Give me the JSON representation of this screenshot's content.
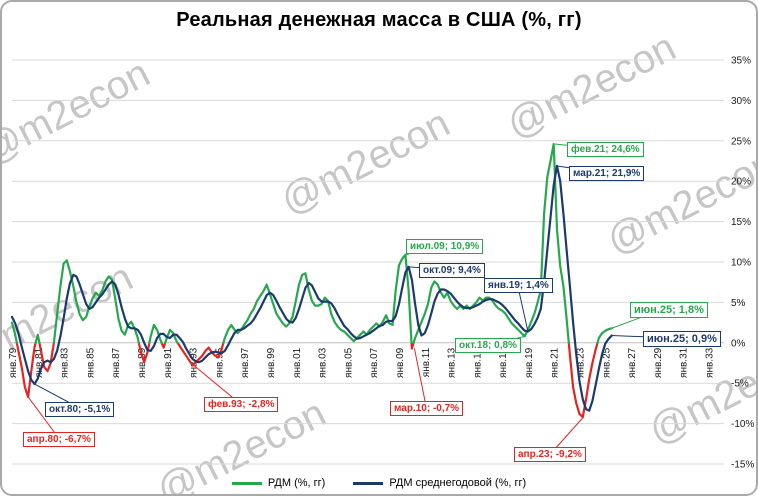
{
  "title": "Реальная денежная масса в США (%, гг)",
  "watermark": "@m2econ",
  "colors": {
    "green": "#25a94c",
    "red": "#e52421",
    "navy": "#1d3a6e",
    "grid": "#d9d9d9",
    "zero": "#bfbfbf",
    "axis_text": "#1a1a1a"
  },
  "chart_data": {
    "type": "line",
    "title": "Реальная денежная масса в США (%, гг)",
    "xlabel": "",
    "ylabel": "",
    "grid": true,
    "legend_position": "bottom",
    "xlim": [
      1979,
      2034.2
    ],
    "ylim": [
      -15,
      35
    ],
    "y_tick_labels": [
      "35%",
      "30%",
      "25%",
      "20%",
      "15%",
      "10%",
      "5%",
      "0%",
      "-5%",
      "-10%",
      "-15%"
    ],
    "x_tick_labels": [
      "янв.79",
      "янв.81",
      "янв.83",
      "янв.85",
      "янв.87",
      "янв.89",
      "янв.91",
      "янв.93",
      "янв.95",
      "янв.97",
      "янв.99",
      "янв.01",
      "янв.03",
      "янв.05",
      "янв.07",
      "янв.09",
      "янв.11",
      "янв.13",
      "янв.15",
      "янв.17",
      "янв.19",
      "янв.21",
      "янв.23",
      "янв.25",
      "янв.27",
      "янв.29",
      "янв.31",
      "янв.33"
    ],
    "x_tick_start_year": 1979,
    "x_tick_step_years": 2,
    "series": [
      {
        "name": "РДМ (%, гг)",
        "color_key": "green",
        "neg_color_key": "red",
        "x_start": 1979.0,
        "x_step": 0.25,
        "values": [
          2.5,
          1.0,
          -1.0,
          -3.0,
          -5.5,
          -6.7,
          -3.5,
          -0.5,
          1.0,
          -1.0,
          -3.0,
          -3.5,
          -2.5,
          0.0,
          3.5,
          7.0,
          9.8,
          10.2,
          8.8,
          7.0,
          5.0,
          3.5,
          2.8,
          3.2,
          4.5,
          5.5,
          6.2,
          5.8,
          6.5,
          7.6,
          8.2,
          7.8,
          5.5,
          3.0,
          1.5,
          1.0,
          2.2,
          2.6,
          1.8,
          0.6,
          -1.2,
          -2.4,
          -1.2,
          0.8,
          2.2,
          1.6,
          0.4,
          -0.6,
          0.6,
          1.6,
          1.2,
          0.2,
          -0.4,
          -1.0,
          -1.6,
          -2.2,
          -2.8,
          -2.4,
          -2.0,
          -1.6,
          -1.0,
          -0.6,
          -1.2,
          -1.6,
          -1.8,
          -0.8,
          0.6,
          1.6,
          2.2,
          1.6,
          1.2,
          1.6,
          2.2,
          2.8,
          3.6,
          4.2,
          5.2,
          5.8,
          6.4,
          7.2,
          6.0,
          4.8,
          3.6,
          3.0,
          2.4,
          2.0,
          2.4,
          3.2,
          5.2,
          7.2,
          8.4,
          8.6,
          6.6,
          5.2,
          4.6,
          4.6,
          4.8,
          5.6,
          5.2,
          3.6,
          2.6,
          2.0,
          1.6,
          1.4,
          1.0,
          0.6,
          0.2,
          0.6,
          1.0,
          1.4,
          1.0,
          1.6,
          2.0,
          2.4,
          2.0,
          2.6,
          3.4,
          2.4,
          2.2,
          6.5,
          9.6,
          10.4,
          10.9,
          6.5,
          -0.7,
          0.6,
          1.6,
          2.6,
          3.6,
          4.8,
          6.8,
          7.6,
          7.2,
          6.2,
          5.6,
          6.2,
          5.2,
          4.6,
          4.2,
          4.6,
          4.2,
          4.6,
          4.2,
          4.6,
          5.0,
          5.6,
          5.2,
          5.6,
          5.6,
          5.2,
          4.6,
          4.2,
          4.0,
          3.6,
          3.0,
          2.4,
          2.0,
          1.6,
          1.2,
          0.8,
          1.6,
          2.6,
          3.6,
          5.0,
          6.5,
          16.0,
          20.5,
          22.5,
          24.6,
          14.0,
          9.5,
          7.0,
          3.0,
          -1.5,
          -5.5,
          -7.5,
          -8.8,
          -9.2,
          -7.0,
          -4.5,
          -2.5,
          -0.8,
          0.6,
          1.2,
          1.5,
          1.7,
          1.8
        ]
      },
      {
        "name": "РДМ среднегодовой (%, гг)",
        "color_key": "navy",
        "x_start": 1979.0,
        "x_step": 0.25,
        "values": [
          3.2,
          2.4,
          1.2,
          -0.5,
          -2.0,
          -3.5,
          -4.6,
          -5.1,
          -4.4,
          -3.2,
          -2.4,
          -2.2,
          -2.4,
          -2.0,
          -1.0,
          0.8,
          3.0,
          5.5,
          7.4,
          8.4,
          8.2,
          7.2,
          6.0,
          4.8,
          4.2,
          4.4,
          5.0,
          5.6,
          6.0,
          6.6,
          7.2,
          7.6,
          7.2,
          6.0,
          4.4,
          3.0,
          2.0,
          1.8,
          1.8,
          1.6,
          1.0,
          0.0,
          -0.9,
          -1.0,
          -0.4,
          0.6,
          1.1,
          1.1,
          0.7,
          0.6,
          1.0,
          1.0,
          0.6,
          0.1,
          -0.7,
          -1.4,
          -2.0,
          -2.3,
          -2.4,
          -2.2,
          -1.8,
          -1.4,
          -1.2,
          -1.1,
          -1.2,
          -1.3,
          -1.0,
          -0.3,
          0.5,
          1.2,
          1.6,
          1.6,
          1.8,
          2.1,
          2.4,
          2.9,
          3.6,
          4.3,
          5.1,
          5.9,
          6.2,
          5.9,
          5.2,
          4.4,
          3.7,
          3.0,
          2.6,
          2.5,
          3.1,
          4.2,
          5.5,
          6.8,
          7.4,
          7.1,
          6.3,
          5.5,
          5.1,
          5.1,
          5.1,
          4.9,
          4.3,
          3.5,
          2.8,
          2.1,
          1.7,
          1.2,
          0.8,
          0.5,
          0.6,
          0.8,
          1.0,
          1.2,
          1.5,
          1.8,
          2.1,
          2.2,
          2.6,
          2.7,
          2.7,
          3.3,
          4.8,
          6.8,
          8.7,
          9.4,
          7.8,
          4.8,
          2.2,
          0.9,
          1.2,
          2.2,
          3.6,
          5.1,
          6.1,
          6.6,
          6.6,
          6.4,
          6.1,
          5.6,
          5.1,
          4.7,
          4.4,
          4.3,
          4.3,
          4.4,
          4.6,
          4.8,
          5.1,
          5.3,
          5.4,
          5.4,
          5.2,
          5.0,
          4.7,
          4.3,
          3.8,
          3.3,
          2.8,
          2.4,
          1.9,
          1.5,
          1.4,
          1.7,
          2.3,
          3.1,
          4.2,
          7.5,
          11.5,
          15.5,
          19.5,
          21.9,
          20.0,
          16.0,
          11.5,
          7.0,
          2.5,
          -1.5,
          -4.8,
          -7.0,
          -8.2,
          -8.4,
          -7.2,
          -5.2,
          -3.2,
          -1.4,
          -0.1,
          0.5,
          0.9
        ]
      }
    ],
    "annotations": [
      {
        "label": "фев.21; 24,6%",
        "style": "green",
        "ax": 2021.08,
        "av": 24.6,
        "bx": 565,
        "by": 140,
        "big": false
      },
      {
        "label": "мар.21; 21,9%",
        "style": "navy",
        "ax": 2021.2,
        "av": 21.9,
        "bx": 567,
        "by": 164,
        "big": false
      },
      {
        "label": "июл.09; 10,9%",
        "style": "green",
        "ax": 2009.5,
        "av": 10.9,
        "bx": 404,
        "by": 237,
        "big": false
      },
      {
        "label": "окт.09; 9,4%",
        "style": "navy",
        "ax": 2009.75,
        "av": 9.4,
        "bx": 417,
        "by": 261,
        "big": false
      },
      {
        "label": "янв.19; 1,4%",
        "style": "navy",
        "ax": 2019.0,
        "av": 1.4,
        "bx": 482,
        "by": 276,
        "big": false
      },
      {
        "label": "июн.25; 1,8%",
        "style": "green",
        "ax": 2025.5,
        "av": 1.8,
        "bx": 628,
        "by": 300,
        "big": true
      },
      {
        "label": "июн.25; 0,9%",
        "style": "navy",
        "ax": 2025.5,
        "av": 0.9,
        "bx": 641,
        "by": 329,
        "big": true
      },
      {
        "label": "окт.18; 0,8%",
        "style": "green",
        "ax": 2018.75,
        "av": 0.8,
        "bx": 453,
        "by": 336,
        "big": false
      },
      {
        "label": "окт.80; -5,1%",
        "style": "navy",
        "ax": 1980.75,
        "av": -5.1,
        "bx": 43,
        "by": 400,
        "big": false
      },
      {
        "label": "апр.80; -6,7%",
        "style": "red",
        "ax": 1980.25,
        "av": -6.7,
        "bx": 21,
        "by": 430,
        "big": false
      },
      {
        "label": "фев.93; -2,8%",
        "style": "red",
        "ax": 1993.1,
        "av": -2.8,
        "bx": 202,
        "by": 395,
        "big": false
      },
      {
        "label": "мар.10; -0,7%",
        "style": "red",
        "ax": 2010.2,
        "av": -0.7,
        "bx": 388,
        "by": 399,
        "big": false
      },
      {
        "label": "апр.23; -9,2%",
        "style": "red",
        "ax": 2023.3,
        "av": -9.2,
        "bx": 512,
        "by": 445,
        "big": false
      }
    ]
  }
}
